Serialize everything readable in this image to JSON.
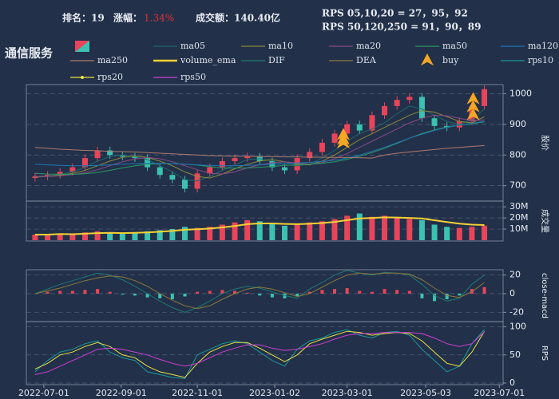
{
  "chart_data": {
    "type": "candlestick",
    "title": "通信服务",
    "header": {
      "rank": "排名：19",
      "change_label": "涨幅：",
      "change": "1.34%",
      "turnover": "成交额：140.40亿",
      "rps_short": "RPS 05,10,20 = 27，95，92",
      "rps_long": "RPS 50,120,250 = 91，90，89"
    },
    "x": [
      "2022-06-24",
      "2022-07-04",
      "2022-07-14",
      "2022-07-24",
      "2022-08-03",
      "2022-08-13",
      "2022-08-23",
      "2022-09-02",
      "2022-09-12",
      "2022-09-22",
      "2022-10-02",
      "2022-10-12",
      "2022-10-22",
      "2022-11-01",
      "2022-11-11",
      "2022-11-21",
      "2022-12-01",
      "2022-12-11",
      "2022-12-21",
      "2022-12-31",
      "2023-01-10",
      "2023-01-20",
      "2023-01-30",
      "2023-02-09",
      "2023-02-19",
      "2023-03-01",
      "2023-03-11",
      "2023-03-21",
      "2023-03-31",
      "2023-04-10",
      "2023-04-20",
      "2023-04-30",
      "2023-05-10",
      "2023-05-20",
      "2023-05-30",
      "2023-06-09",
      "2023-06-19"
    ],
    "xlim": [
      "2022-06-17",
      "2023-07-04"
    ],
    "xticks": [
      "2022-07-01",
      "2022-09-01",
      "2022-11-01",
      "2023-01-02",
      "2023-03-01",
      "2023-05-03",
      "2023-07-01"
    ],
    "candles": {
      "up_color": "#e8455a",
      "down_color": "#3cc2b0",
      "open": [
        725,
        730,
        735,
        745,
        760,
        790,
        815,
        800,
        795,
        790,
        760,
        735,
        720,
        690,
        740,
        760,
        780,
        790,
        795,
        780,
        760,
        750,
        790,
        810,
        840,
        870,
        900,
        880,
        930,
        960,
        980,
        990,
        920,
        895,
        890,
        910,
        960
      ],
      "high": [
        742,
        747,
        757,
        772,
        802,
        827,
        827,
        812,
        807,
        802,
        772,
        747,
        732,
        752,
        772,
        792,
        802,
        807,
        807,
        792,
        772,
        802,
        822,
        852,
        882,
        912,
        912,
        942,
        972,
        992,
        1002,
        1002,
        932,
        907,
        922,
        972,
        1027
      ],
      "low": [
        713,
        718,
        723,
        733,
        748,
        778,
        788,
        783,
        778,
        748,
        723,
        708,
        678,
        678,
        728,
        748,
        768,
        778,
        768,
        748,
        738,
        738,
        778,
        798,
        828,
        858,
        868,
        868,
        918,
        948,
        968,
        908,
        883,
        878,
        878,
        898,
        948
      ],
      "close": [
        730,
        735,
        745,
        760,
        790,
        815,
        800,
        795,
        790,
        760,
        735,
        720,
        690,
        740,
        760,
        780,
        790,
        795,
        780,
        760,
        750,
        790,
        810,
        840,
        870,
        900,
        880,
        930,
        960,
        980,
        990,
        920,
        895,
        890,
        910,
        960,
        1015
      ]
    },
    "volume": [
      5,
      5,
      6,
      5,
      7,
      8,
      7,
      6,
      7,
      8,
      9,
      10,
      12,
      11,
      12,
      14,
      16,
      18,
      17,
      15,
      13,
      14,
      16,
      17,
      19,
      22,
      24,
      21,
      22,
      20,
      19,
      18,
      14,
      12,
      11,
      12,
      13
    ],
    "macd_hist": [
      0,
      2,
      3,
      3,
      4,
      5,
      2,
      -1,
      -2,
      -4,
      -5,
      -6,
      -3,
      2,
      3,
      4,
      3,
      1,
      -2,
      -4,
      -5,
      -3,
      2,
      4,
      5,
      6,
      3,
      2,
      5,
      4,
      3,
      -5,
      -8,
      -6,
      -2,
      5,
      7
    ],
    "macd_colors": {
      "up": "#e8455a",
      "down": "#3cc2b0"
    },
    "series": [
      {
        "name": "ma05",
        "color": "#1e6a6a",
        "panel": "price",
        "values": [
          728,
          731,
          737,
          745,
          760,
          780,
          795,
          800,
          795,
          785,
          765,
          745,
          720,
          715,
          730,
          750,
          768,
          785,
          788,
          782,
          768,
          765,
          770,
          790,
          815,
          845,
          870,
          885,
          905,
          935,
          960,
          950,
          930,
          910,
          900,
          915,
          950
        ]
      },
      {
        "name": "ma10",
        "color": "#8c8a3a",
        "panel": "price",
        "values": [
          728,
          730,
          734,
          740,
          750,
          765,
          780,
          792,
          797,
          792,
          780,
          765,
          745,
          730,
          725,
          738,
          755,
          770,
          780,
          785,
          778,
          770,
          768,
          780,
          800,
          825,
          850,
          870,
          890,
          910,
          930,
          945,
          940,
          925,
          910,
          905,
          925
        ]
      },
      {
        "name": "ma20",
        "color": "#8a4a86",
        "panel": "price",
        "values": [
          730,
          730,
          732,
          736,
          742,
          752,
          765,
          778,
          787,
          792,
          788,
          778,
          765,
          752,
          740,
          738,
          745,
          758,
          768,
          775,
          778,
          774,
          770,
          775,
          788,
          805,
          825,
          845,
          865,
          885,
          905,
          920,
          930,
          928,
          920,
          912,
          915
        ]
      },
      {
        "name": "ma50",
        "color": "#2a9a62",
        "panel": "price",
        "values": [
          740,
          738,
          737,
          737,
          739,
          743,
          750,
          758,
          765,
          770,
          772,
          772,
          770,
          767,
          762,
          758,
          757,
          758,
          760,
          763,
          766,
          768,
          770,
          773,
          778,
          786,
          796,
          808,
          822,
          838,
          855,
          870,
          882,
          892,
          898,
          902,
          908
        ]
      },
      {
        "name": "ma120",
        "color": "#1f77b4",
        "panel": "price",
        "values": [
          770,
          768,
          766,
          765,
          765,
          766,
          768,
          770,
          772,
          773,
          773,
          772,
          770,
          768,
          766,
          765,
          765,
          766,
          768,
          770,
          772,
          774,
          776,
          779,
          783,
          790,
          800,
          812,
          825,
          840,
          855,
          868,
          880,
          890,
          898,
          904,
          910
        ]
      },
      {
        "name": "ma250",
        "color": "#b07a6a",
        "panel": "price",
        "values": [
          825,
          822,
          819,
          817,
          815,
          814,
          812,
          811,
          810,
          808,
          806,
          804,
          802,
          800,
          798,
          797,
          796,
          796,
          795,
          795,
          794,
          794,
          793,
          793,
          792,
          792,
          791,
          790,
          800,
          806,
          810,
          814,
          818,
          822,
          825,
          828,
          831
        ]
      },
      {
        "name": "volume_ema",
        "color": "#f5d033",
        "panel": "volume",
        "values": [
          5,
          5,
          5.5,
          5.4,
          5.8,
          6.4,
          6.6,
          6.4,
          6.6,
          7,
          7.6,
          8.3,
          9.4,
          9.8,
          10.5,
          11.5,
          12.8,
          14.4,
          15.1,
          15.1,
          14.6,
          14.4,
          14.8,
          15.4,
          16.4,
          18,
          19.6,
          20,
          20.5,
          20.4,
          20,
          19.5,
          17.9,
          16.3,
          14.9,
          14,
          13.6
        ]
      },
      {
        "name": "DIF",
        "color": "#1e7a72",
        "panel": "macd",
        "values": [
          0,
          5,
          10,
          14,
          18,
          22,
          20,
          15,
          8,
          0,
          -8,
          -15,
          -20,
          -15,
          -8,
          0,
          5,
          8,
          6,
          2,
          -2,
          -5,
          5,
          12,
          20,
          25,
          22,
          20,
          23,
          22,
          20,
          10,
          -2,
          -8,
          -5,
          10,
          20
        ]
      },
      {
        "name": "DEA",
        "color": "#8c7a3a",
        "panel": "macd",
        "values": [
          0,
          3,
          6,
          10,
          14,
          17,
          19,
          18,
          14,
          8,
          0,
          -7,
          -13,
          -16,
          -13,
          -6,
          0,
          5,
          7,
          5,
          1,
          -3,
          0,
          7,
          14,
          20,
          22,
          21,
          22,
          22,
          21,
          15,
          6,
          -2,
          -4,
          2,
          12
        ]
      },
      {
        "name": "rps10",
        "color": "#1a9a9a",
        "panel": "rps",
        "values": [
          20,
          40,
          55,
          60,
          70,
          75,
          55,
          45,
          40,
          20,
          15,
          10,
          8,
          50,
          60,
          70,
          75,
          70,
          55,
          40,
          30,
          60,
          75,
          80,
          90,
          95,
          85,
          80,
          90,
          92,
          85,
          60,
          40,
          20,
          30,
          70,
          95
        ]
      },
      {
        "name": "rps20",
        "color": "#e8e040",
        "panel": "rps",
        "values": [
          25,
          35,
          50,
          55,
          65,
          72,
          65,
          50,
          45,
          30,
          20,
          15,
          10,
          35,
          55,
          65,
          72,
          72,
          62,
          50,
          38,
          50,
          70,
          78,
          85,
          92,
          90,
          85,
          88,
          90,
          88,
          75,
          55,
          35,
          30,
          55,
          92
        ]
      },
      {
        "name": "rps50",
        "color": "#d040d0",
        "panel": "rps",
        "values": [
          15,
          20,
          30,
          40,
          50,
          60,
          62,
          60,
          55,
          50,
          42,
          35,
          30,
          35,
          45,
          55,
          62,
          68,
          68,
          62,
          58,
          60,
          65,
          70,
          78,
          85,
          88,
          88,
          90,
          90,
          90,
          88,
          80,
          70,
          65,
          70,
          91
        ]
      }
    ],
    "buy": {
      "name": "buy",
      "color": "#f5a623",
      "x": [
        "2023-02-26",
        "2023-02-26",
        "2023-02-26",
        "2023-06-10",
        "2023-06-10",
        "2023-06-10"
      ],
      "y": [
        865,
        850,
        838,
        982,
        956,
        930
      ]
    },
    "panels": {
      "price": {
        "ylabel": "股价",
        "ylim": [
          660,
          1030
        ],
        "yticks": [
          700,
          800,
          900,
          1000
        ]
      },
      "volume": {
        "ylabel": "成交量",
        "ylim": [
          0,
          33
        ],
        "yticks": [
          {
            "value": 10,
            "label": "10M"
          },
          {
            "value": 20,
            "label": "20M"
          },
          {
            "value": 30,
            "label": "30M"
          }
        ]
      },
      "macd": {
        "ylabel": "close-macd",
        "ylim": [
          -30,
          30
        ],
        "yticks": [
          -20,
          0,
          20
        ]
      },
      "rps": {
        "ylabel": "RPS",
        "ylim": [
          0,
          105
        ],
        "yticks": [
          0,
          50,
          100
        ]
      }
    },
    "grid": true
  }
}
